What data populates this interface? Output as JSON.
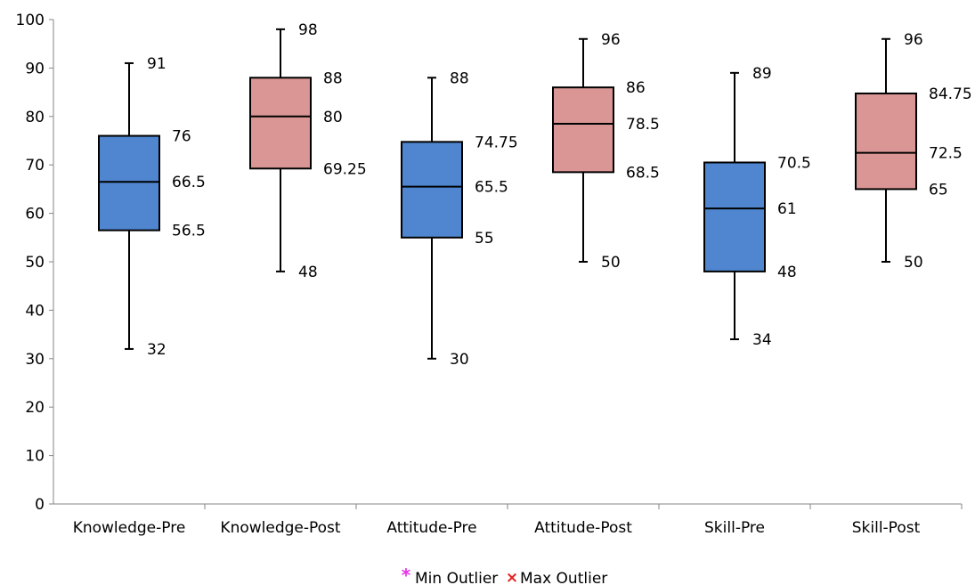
{
  "chart_data": {
    "type": "boxplot",
    "title": "",
    "xlabel": "",
    "ylabel": "",
    "ylim": [
      0,
      100
    ],
    "yticks": [
      0,
      10,
      20,
      30,
      40,
      50,
      60,
      70,
      80,
      90,
      100
    ],
    "grid": false,
    "categories": [
      "Knowledge-Pre",
      "Knowledge-Post",
      "Attitude-Pre",
      "Attitude-Post",
      "Skill-Pre",
      "Skill-Post"
    ],
    "boxes": [
      {
        "category": "Knowledge-Pre",
        "min": 32,
        "q1": 56.5,
        "median": 66.5,
        "q3": 76,
        "max": 91,
        "color": "#4f86cf"
      },
      {
        "category": "Knowledge-Post",
        "min": 48,
        "q1": 69.25,
        "median": 80,
        "q3": 88,
        "max": 98,
        "color": "#d99694"
      },
      {
        "category": "Attitude-Pre",
        "min": 30,
        "q1": 55,
        "median": 65.5,
        "q3": 74.75,
        "max": 88,
        "color": "#4f86cf"
      },
      {
        "category": "Attitude-Post",
        "min": 50,
        "q1": 68.5,
        "median": 78.5,
        "q3": 86,
        "max": 96,
        "color": "#d99694"
      },
      {
        "category": "Skill-Pre",
        "min": 34,
        "q1": 48,
        "median": 61,
        "q3": 70.5,
        "max": 89,
        "color": "#4f86cf"
      },
      {
        "category": "Skill-Post",
        "min": 50,
        "q1": 65,
        "median": 72.5,
        "q3": 84.75,
        "max": 96,
        "color": "#d99694"
      }
    ],
    "labels": [
      {
        "max": "91",
        "q3": "76",
        "median": "66.5",
        "q1": "56.5",
        "min": "32"
      },
      {
        "max": "98",
        "q3": "88",
        "median": "80",
        "q1": "69.25",
        "min": "48"
      },
      {
        "max": "88",
        "q3": "74.75",
        "median": "65.5",
        "q1": "55",
        "min": "30"
      },
      {
        "max": "96",
        "q3": "86",
        "median": "78.5",
        "q1": "68.5",
        "min": "50"
      },
      {
        "max": "89",
        "q3": "70.5",
        "median": "61",
        "q1": "48",
        "min": "34"
      },
      {
        "max": "96",
        "q3": "84.75",
        "median": "72.5",
        "q1": "65",
        "min": "50"
      }
    ],
    "legend": {
      "position": "bottom",
      "entries": [
        {
          "name": "Min Outlier",
          "marker": "*",
          "color": "#e633e6"
        },
        {
          "name": "Max Outlier",
          "marker": "x",
          "color": "#e61e1e"
        }
      ]
    }
  }
}
